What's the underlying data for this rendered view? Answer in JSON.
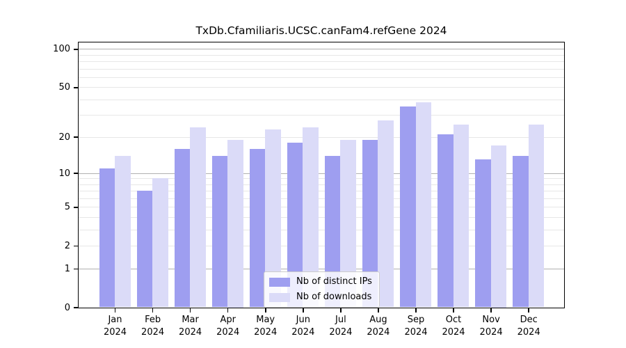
{
  "chart_data": {
    "type": "bar",
    "title": "TxDb.Cfamiliaris.UCSC.canFam4.refGene 2024",
    "year": "2024",
    "categories": [
      "Jan",
      "Feb",
      "Mar",
      "Apr",
      "May",
      "Jun",
      "Jul",
      "Aug",
      "Sep",
      "Oct",
      "Nov",
      "Dec"
    ],
    "series": [
      {
        "name": "Nb of distinct IPs",
        "color": "#9e9ef0",
        "values": [
          11,
          7,
          16,
          14,
          16,
          18,
          14,
          19,
          35,
          21,
          13,
          14
        ]
      },
      {
        "name": "Nb of downloads",
        "color": "#dbdbf8",
        "values": [
          14,
          9,
          24,
          19,
          23,
          24,
          19,
          27,
          38,
          25,
          17,
          25
        ]
      }
    ],
    "xlabel": "",
    "ylabel": "",
    "yscale": "log1p",
    "ylim": [
      0,
      113
    ],
    "yticks": [
      0,
      1,
      2,
      5,
      10,
      20,
      50,
      100
    ],
    "gridlines": {
      "major": [
        1,
        10,
        100
      ],
      "minor": [
        2,
        3,
        4,
        5,
        6,
        7,
        8,
        9,
        20,
        30,
        40,
        50,
        60,
        70,
        80,
        90
      ]
    },
    "grid": true,
    "legend_position": "bottom-center",
    "colors": {
      "axis": "#000000",
      "grid_minor": "#e7e7e7",
      "grid_major": "#b0b0b0",
      "text": "#000000"
    }
  }
}
